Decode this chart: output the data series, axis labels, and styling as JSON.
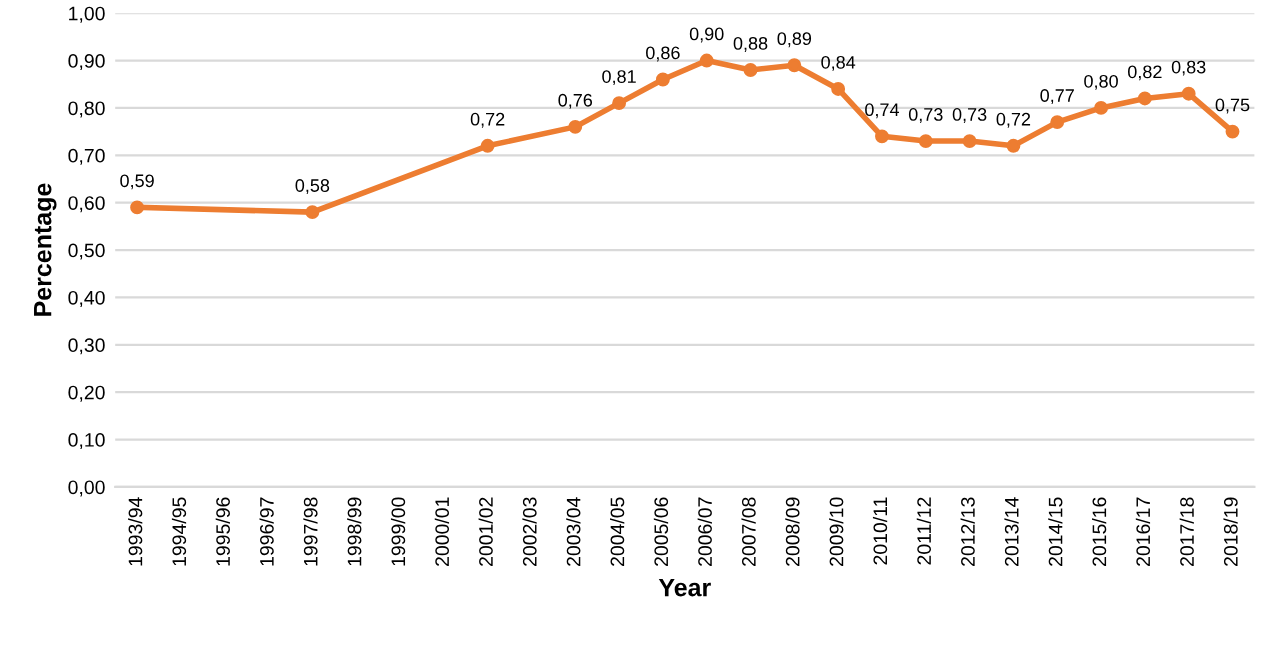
{
  "chart_data": {
    "type": "line",
    "xlabel": "Year",
    "ylabel": "Percentage",
    "categories": [
      "1993/94",
      "1994/95",
      "1995/96",
      "1996/97",
      "1997/98",
      "1998/99",
      "1999/00",
      "2000/01",
      "2001/02",
      "2002/03",
      "2003/04",
      "2004/05",
      "2005/06",
      "2006/07",
      "2007/08",
      "2008/09",
      "2009/10",
      "2010/11",
      "2011/12",
      "2012/13",
      "2013/14",
      "2014/15",
      "2015/16",
      "2016/17",
      "2017/18",
      "2018/19"
    ],
    "series": [
      {
        "color": "#ed7d31",
        "values": [
          0.59,
          null,
          null,
          null,
          0.58,
          null,
          null,
          null,
          0.72,
          null,
          0.76,
          0.81,
          0.86,
          0.9,
          0.88,
          0.89,
          0.84,
          0.74,
          0.73,
          0.73,
          0.72,
          0.77,
          0.8,
          0.82,
          0.83,
          0.75
        ],
        "value_labels": [
          "0,59",
          null,
          null,
          null,
          "0,58",
          null,
          null,
          null,
          "0,72",
          null,
          "0,76",
          "0,81",
          "0,86",
          "0,90",
          "0,88",
          "0,89",
          "0,84",
          "0,74",
          "0,73",
          "0,73",
          "0,72",
          "0,77",
          "0,80",
          "0,82",
          "0,83",
          "0,75"
        ]
      }
    ],
    "ylim": [
      0,
      1
    ],
    "yticks": [
      {
        "value": 0,
        "label": "0,00"
      },
      {
        "value": 0.1,
        "label": "0,10"
      },
      {
        "value": 0.2,
        "label": "0,20"
      },
      {
        "value": 0.3,
        "label": "0,30"
      },
      {
        "value": 0.4,
        "label": "0,40"
      },
      {
        "value": 0.5,
        "label": "0,50"
      },
      {
        "value": 0.6,
        "label": "0,60"
      },
      {
        "value": 0.7,
        "label": "0,70"
      },
      {
        "value": 0.8,
        "label": "0,80"
      },
      {
        "value": 0.9,
        "label": "0,90"
      },
      {
        "value": 1,
        "label": "1,00"
      }
    ],
    "grid": "y",
    "marker": "circle",
    "line_style": "solid"
  }
}
